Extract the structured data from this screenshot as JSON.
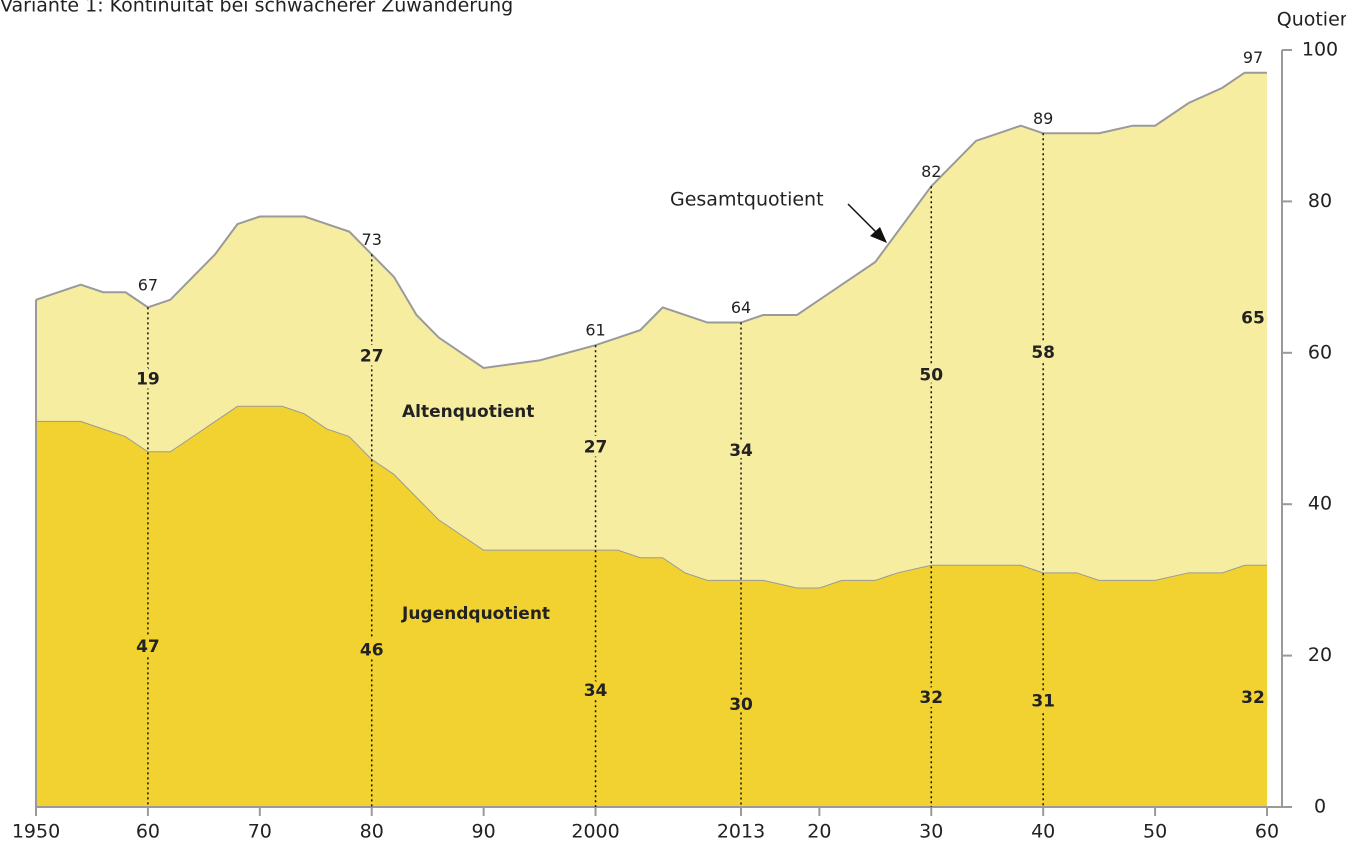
{
  "chart_data": {
    "type": "stacked-area",
    "title": "Variante 1: Kontinuität bei schwächerer Zuwanderung",
    "y_label": "Quotient",
    "x": [
      1950,
      1952,
      1954,
      1956,
      1958,
      1960,
      1962,
      1964,
      1966,
      1968,
      1970,
      1972,
      1974,
      1976,
      1978,
      1980,
      1982,
      1984,
      1986,
      1988,
      1990,
      1995,
      2000,
      2002,
      2004,
      2006,
      2008,
      2010,
      2013,
      2015,
      2018,
      2020,
      2022,
      2025,
      2027,
      2030,
      2032,
      2034,
      2036,
      2038,
      2040,
      2043,
      2045,
      2048,
      2050,
      2053,
      2056,
      2058,
      2060
    ],
    "series": [
      {
        "name": "Jugendquotient",
        "color": "#f2d231",
        "values": [
          51,
          51,
          51,
          50,
          49,
          47,
          47,
          49,
          51,
          53,
          53,
          53,
          52,
          50,
          49,
          46,
          44,
          41,
          38,
          36,
          34,
          34,
          34,
          34,
          33,
          33,
          31,
          30,
          30,
          30,
          29,
          29,
          30,
          30,
          31,
          32,
          32,
          32,
          32,
          32,
          31,
          31,
          30,
          30,
          30,
          31,
          31,
          32,
          32
        ]
      },
      {
        "name": "Altenquotient",
        "color": "#f7eda1",
        "values": [
          16,
          17,
          18,
          18,
          19,
          19,
          20,
          21,
          22,
          24,
          25,
          25,
          26,
          27,
          27,
          27,
          26,
          24,
          24,
          24,
          24,
          25,
          27,
          28,
          30,
          33,
          34,
          34,
          34,
          35,
          36,
          38,
          39,
          42,
          45,
          50,
          53,
          56,
          57,
          58,
          58,
          58,
          59,
          60,
          60,
          62,
          64,
          65,
          65
        ]
      }
    ],
    "line_color": "#9a9a9a",
    "total_labels": [
      {
        "x": 1960,
        "value": 67
      },
      {
        "x": 1980,
        "value": 73
      },
      {
        "x": 2000,
        "value": 61
      },
      {
        "x": 2013,
        "value": 64
      },
      {
        "x": 2030,
        "value": 82
      },
      {
        "x": 2040,
        "value": 89
      },
      {
        "x": 2060,
        "value": 97
      }
    ],
    "dotted_lines": [
      1960,
      1980,
      2000,
      2013,
      2030,
      2040
    ],
    "annotation": "Gesamtquotient",
    "xlim": [
      1950,
      2060
    ],
    "xticks": [
      1950,
      {
        "value": 1960,
        "label": "60"
      },
      {
        "value": 1970,
        "label": "70"
      },
      {
        "value": 1980,
        "label": "80"
      },
      {
        "value": 1990,
        "label": "90"
      },
      2000,
      2013,
      {
        "value": 2020,
        "label": "20"
      },
      {
        "value": 2030,
        "label": "30"
      },
      {
        "value": 2040,
        "label": "40"
      },
      {
        "value": 2050,
        "label": "50"
      },
      {
        "value": 2060,
        "label": "60"
      }
    ],
    "ylim": [
      0,
      100
    ],
    "yticks": [
      0,
      20,
      40,
      60,
      80,
      100
    ]
  }
}
